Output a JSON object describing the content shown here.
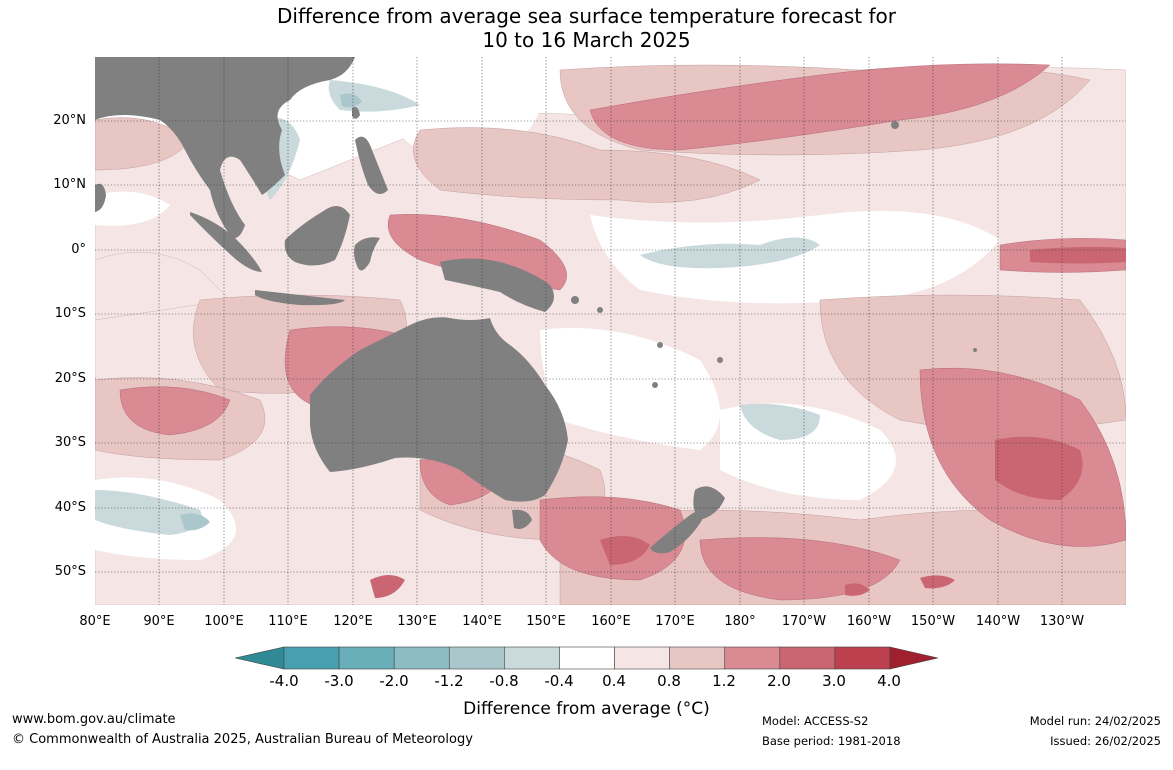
{
  "title": {
    "line1": "Difference from average sea surface temperature forecast for",
    "line2": "10 to 16 March 2025"
  },
  "map": {
    "lat_labels": [
      "20°N",
      "10°N",
      "0°",
      "10°S",
      "20°S",
      "30°S",
      "40°S",
      "50°S"
    ],
    "lon_labels": [
      "80°E",
      "90°E",
      "100°E",
      "110°E",
      "120°E",
      "130°E",
      "140°E",
      "150°E",
      "160°E",
      "170°E",
      "180°",
      "170°W",
      "160°W",
      "150°W",
      "140°W",
      "130°W"
    ],
    "colors": {
      "land": "#808080",
      "neutral": "#ffffff",
      "grid": "#333333"
    }
  },
  "colorbar": {
    "labels": [
      "-4.0",
      "-3.0",
      "-2.0",
      "-1.2",
      "-0.8",
      "-0.4",
      "0.4",
      "0.8",
      "1.2",
      "2.0",
      "3.0",
      "4.0"
    ],
    "colors": [
      "#2f8a96",
      "#47a0b0",
      "#6aaeba",
      "#8cbcc4",
      "#aac8cc",
      "#c9d9dc",
      "#ffffff",
      "#f5e6e5",
      "#e8c6c3",
      "#d98a93",
      "#c96672",
      "#bd404f",
      "#a0202f"
    ],
    "title": "Difference from average (°C)"
  },
  "footer": {
    "website": "www.bom.gov.au/climate",
    "copyright": "© Commonwealth of Australia 2025, Australian Bureau of Meteorology",
    "model": "Model: ACCESS-S2",
    "base_period": "Base period: 1981-2018",
    "model_run": "Model run: 24/02/2025",
    "issued": "Issued: 26/02/2025"
  }
}
